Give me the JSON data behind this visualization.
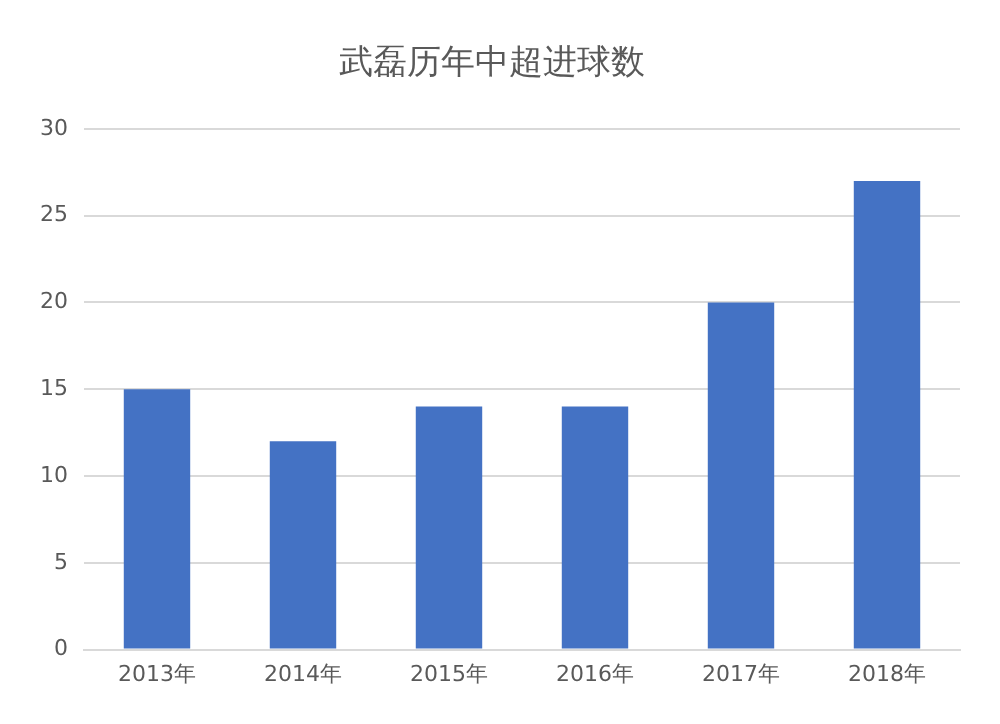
{
  "chart_data": {
    "type": "bar",
    "title": "武磊历年中超进球数",
    "categories": [
      "2013年",
      "2014年",
      "2015年",
      "2016年",
      "2017年",
      "2018年"
    ],
    "values": [
      15,
      12,
      14,
      14,
      20,
      27
    ],
    "color": "#4472c4",
    "ylim": [
      0,
      30
    ],
    "yticks": [
      0,
      5,
      10,
      15,
      20,
      25,
      30
    ],
    "grid": "y",
    "legend": false
  }
}
